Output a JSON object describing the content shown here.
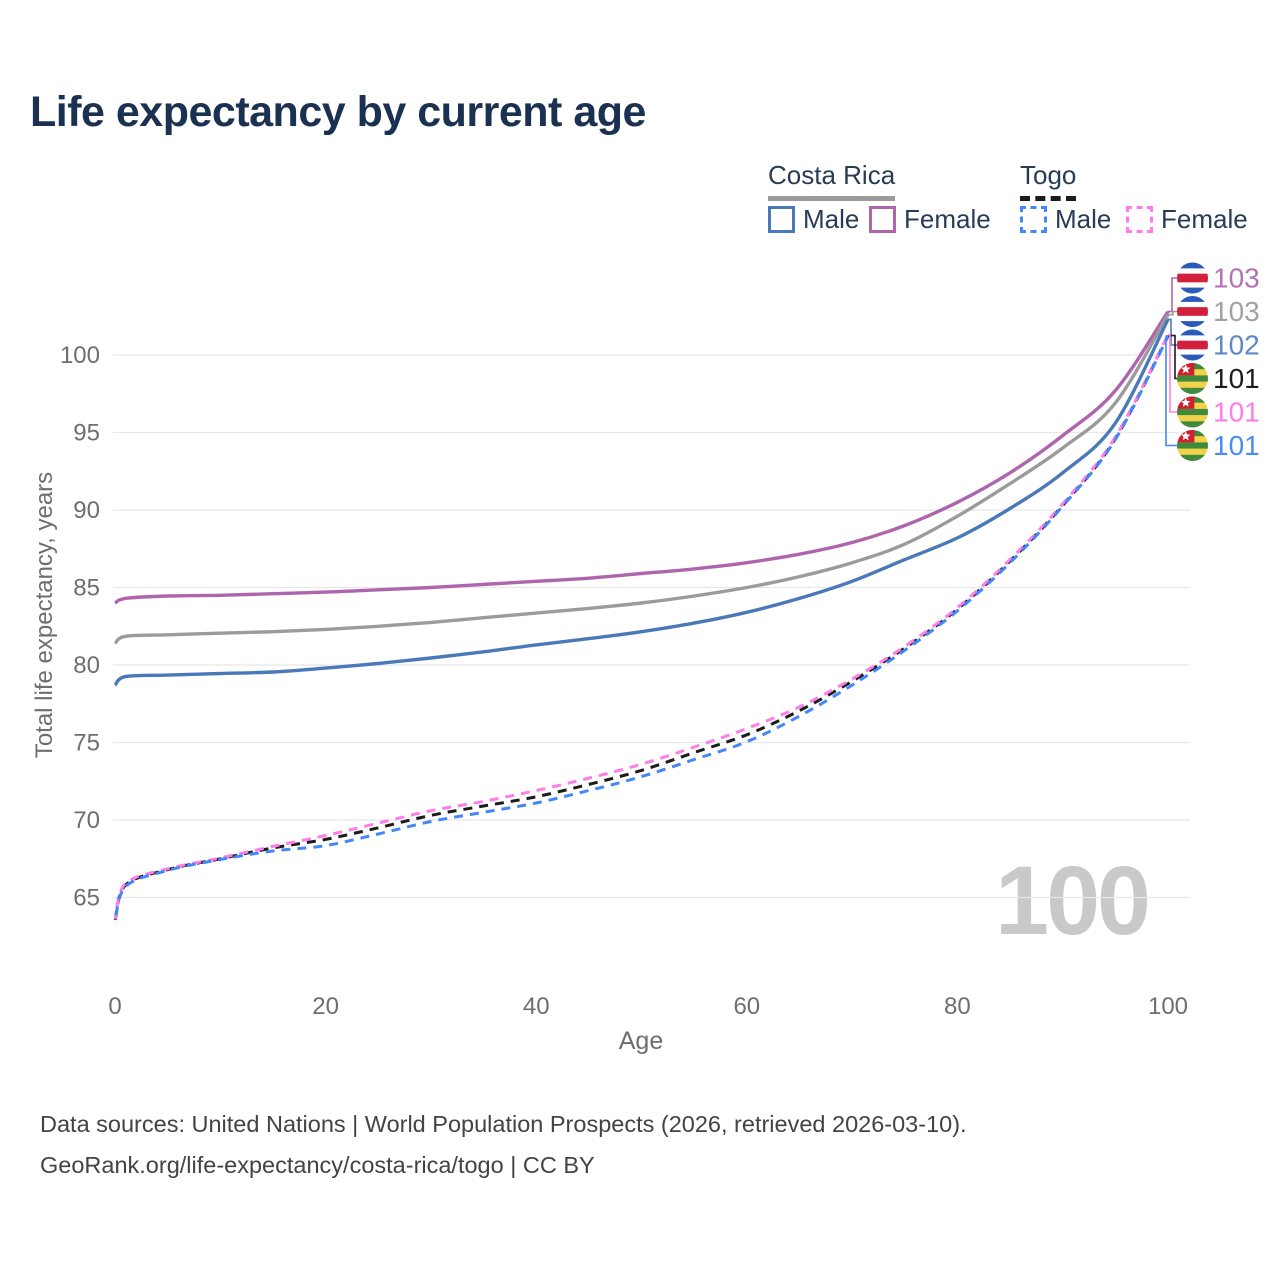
{
  "title": "Life expectancy by current age",
  "legend": {
    "groups": [
      {
        "label": "Costa Rica",
        "line_style": "solid",
        "underline_color": "#9b9b9b",
        "items": [
          {
            "label": "Male",
            "color": "#4a79ba"
          },
          {
            "label": "Female",
            "color": "#ae65ad"
          }
        ]
      },
      {
        "label": "Togo",
        "line_style": "dashed",
        "underline_color": "#1c1c1c",
        "items": [
          {
            "label": "Male",
            "color": "#4487f6"
          },
          {
            "label": "Female",
            "color": "#fe7de9"
          }
        ]
      }
    ]
  },
  "watermark": "100",
  "footer": {
    "line1": "Data sources: United Nations | World Population Prospects (2026, retrieved 2026-03-10).",
    "line2": "GeoRank.org/life-expectancy/costa-rica/togo | CC BY"
  },
  "chart_data": {
    "type": "line",
    "title": "Life expectancy by current age",
    "xlabel": "Age",
    "ylabel": "Total life expectancy, years",
    "xlim": [
      0,
      100
    ],
    "ylim": [
      63,
      104
    ],
    "x_ticks": [
      0,
      20,
      40,
      60,
      80,
      100
    ],
    "y_ticks": [
      65,
      70,
      75,
      80,
      85,
      90,
      95,
      100
    ],
    "grid": "horizontal",
    "grid_color": "#e8e8e8",
    "tick_color": "#6e6e6e",
    "ages": [
      0,
      1,
      5,
      10,
      15,
      20,
      25,
      30,
      35,
      40,
      45,
      50,
      55,
      60,
      65,
      70,
      75,
      80,
      85,
      90,
      95,
      100
    ],
    "series": [
      {
        "name": "Costa Rica Female",
        "country": "Costa Rica",
        "sex": "Female",
        "flag": "costa-rica",
        "color": "#ae65ad",
        "dash": false,
        "end_label": "103",
        "end_label_color": "#b273b3",
        "values": [
          84.0,
          84.3,
          84.45,
          84.5,
          84.6,
          84.7,
          84.85,
          85.0,
          85.2,
          85.4,
          85.6,
          85.9,
          86.2,
          86.6,
          87.15,
          87.9,
          89.0,
          90.5,
          92.4,
          94.8,
          97.7,
          102.8
        ]
      },
      {
        "name": "Costa Rica Both sexes",
        "country": "Costa Rica",
        "sex": "Both sexes",
        "flag": "costa-rica",
        "color": "#9b9b9b",
        "dash": false,
        "end_label": "103",
        "end_label_color": "#a2a2a2",
        "values": [
          81.4,
          81.85,
          81.95,
          82.05,
          82.15,
          82.3,
          82.5,
          82.75,
          83.05,
          83.35,
          83.65,
          84.0,
          84.45,
          85.0,
          85.7,
          86.6,
          87.8,
          89.6,
          91.7,
          94.0,
          96.9,
          102.6
        ]
      },
      {
        "name": "Costa Rica Male",
        "country": "Costa Rica",
        "sex": "Male",
        "flag": "costa-rica",
        "color": "#4a79ba",
        "dash": false,
        "end_label": "102",
        "end_label_color": "#5f88c6",
        "values": [
          78.7,
          79.25,
          79.35,
          79.45,
          79.55,
          79.8,
          80.1,
          80.45,
          80.85,
          81.3,
          81.7,
          82.15,
          82.7,
          83.4,
          84.3,
          85.4,
          86.8,
          88.2,
          90.1,
          92.4,
          95.6,
          102.3
        ]
      },
      {
        "name": "Togo Both sexes",
        "country": "Togo",
        "sex": "Both sexes",
        "flag": "togo",
        "color": "#1c1c1c",
        "dash": true,
        "end_label": "101",
        "end_label_color": "#1c1c1c",
        "values": [
          63.5,
          65.8,
          66.8,
          67.5,
          68.2,
          68.75,
          69.5,
          70.3,
          70.9,
          71.5,
          72.3,
          73.2,
          74.35,
          75.5,
          77.05,
          78.95,
          81.1,
          83.6,
          86.7,
          90.3,
          94.6,
          101.25
        ]
      },
      {
        "name": "Togo Female",
        "country": "Togo",
        "sex": "Female",
        "flag": "togo",
        "color": "#fe7de9",
        "dash": true,
        "end_label": "101",
        "end_label_color": "#fe7de9",
        "values": [
          63.6,
          65.9,
          66.85,
          67.55,
          68.3,
          69.0,
          69.8,
          70.6,
          71.2,
          71.9,
          72.7,
          73.6,
          74.7,
          75.9,
          77.3,
          79.1,
          81.2,
          83.7,
          86.8,
          90.4,
          94.7,
          101.3
        ]
      },
      {
        "name": "Togo Male",
        "country": "Togo",
        "sex": "Male",
        "flag": "togo",
        "color": "#4487f6",
        "dash": true,
        "end_label": "101",
        "end_label_color": "#4c8cf0",
        "values": [
          63.4,
          65.7,
          66.75,
          67.45,
          68.0,
          68.35,
          69.1,
          69.9,
          70.5,
          71.1,
          71.9,
          72.8,
          73.9,
          75.05,
          76.7,
          78.7,
          80.95,
          83.5,
          86.6,
          90.25,
          94.55,
          101.2
        ]
      }
    ],
    "flag_colors": {
      "costa_rica": {
        "blue": "#2a5bb8",
        "red": "#d21f3c",
        "white": "#ffffff"
      },
      "togo": {
        "green": "#3f8a3d",
        "yellow": "#f2d24b",
        "red": "#d02030",
        "star": "#ffffff"
      }
    }
  }
}
